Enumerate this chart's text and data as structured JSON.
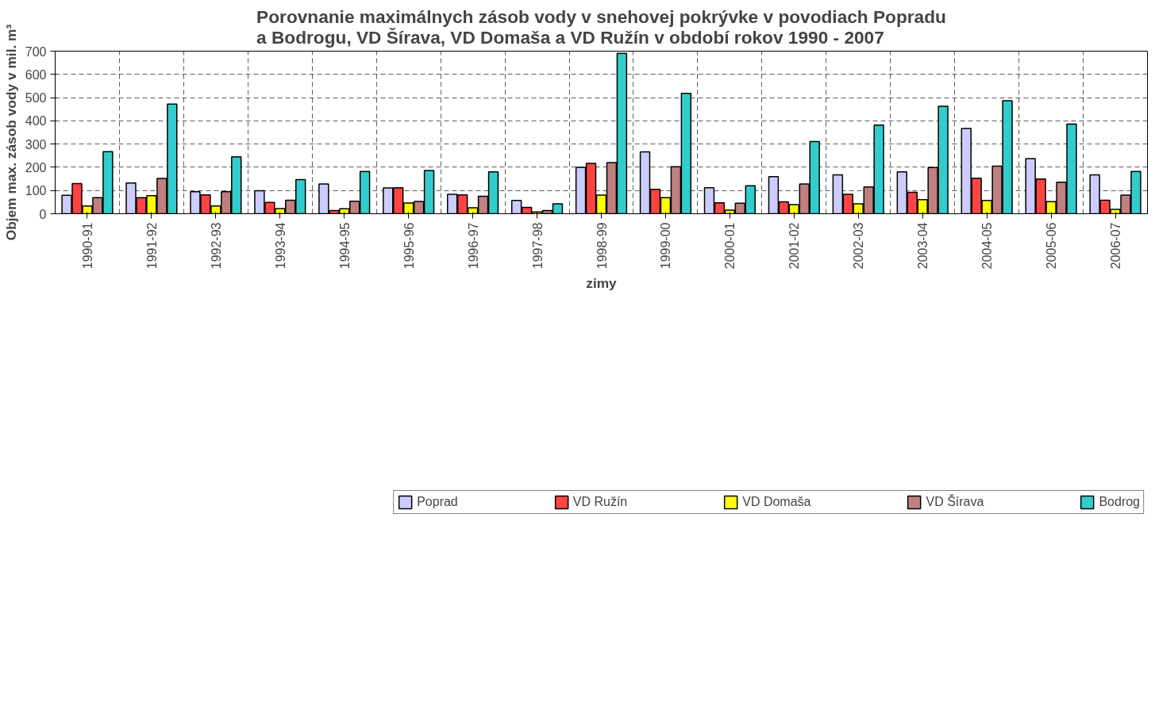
{
  "chart_data": {
    "type": "bar",
    "title": "Porovnanie maximálnych zásob vody v snehovej pokrývke v povodiach Popradu\na Bodrogu, VD Šírava, VD Domaša a VD Ružín v období  rokov 1990 - 2007",
    "xlabel": "zimy",
    "ylabel": "Objem max. zásob vody v mil. m³",
    "categories": [
      "1990-91",
      "1991-92",
      "1992-93",
      "1993-94",
      "1994-95",
      "1995-96",
      "1996-97",
      "1997-98",
      "1998-99",
      "1999-00",
      "2000-01",
      "2001-02",
      "2002-03",
      "2003-04",
      "2004-05",
      "2005-06",
      "2006-07"
    ],
    "series": [
      {
        "name": "Poprad",
        "color": "#ccccff",
        "values": [
          79,
          132,
          95,
          99,
          128,
          111,
          84,
          57,
          200,
          266,
          112,
          160,
          167,
          180,
          367,
          237,
          167
        ]
      },
      {
        "name": "VD Ružín",
        "color": "#ff4444",
        "values": [
          130,
          69,
          81,
          49,
          14,
          112,
          81,
          27,
          217,
          105,
          47,
          51,
          84,
          92,
          153,
          149,
          58
        ]
      },
      {
        "name": "VD Domaša",
        "color": "#ffff00",
        "values": [
          33,
          78,
          33,
          22,
          21,
          46,
          26,
          8,
          80,
          69,
          15,
          39,
          43,
          61,
          57,
          52,
          19
        ]
      },
      {
        "name": "VD Šírava",
        "color": "#c08080",
        "values": [
          69,
          152,
          95,
          58,
          54,
          53,
          75,
          14,
          220,
          202,
          45,
          128,
          115,
          199,
          205,
          136,
          80
        ]
      },
      {
        "name": "Bodrog",
        "color": "#33cccc",
        "values": [
          267,
          472,
          245,
          147,
          182,
          186,
          180,
          43,
          691,
          518,
          120,
          311,
          382,
          463,
          487,
          386,
          182
        ]
      }
    ],
    "ylim": [
      0,
      700
    ],
    "yticks": [
      0,
      100,
      200,
      300,
      400,
      500,
      600,
      700
    ],
    "grid": true,
    "legend": "bottom"
  }
}
